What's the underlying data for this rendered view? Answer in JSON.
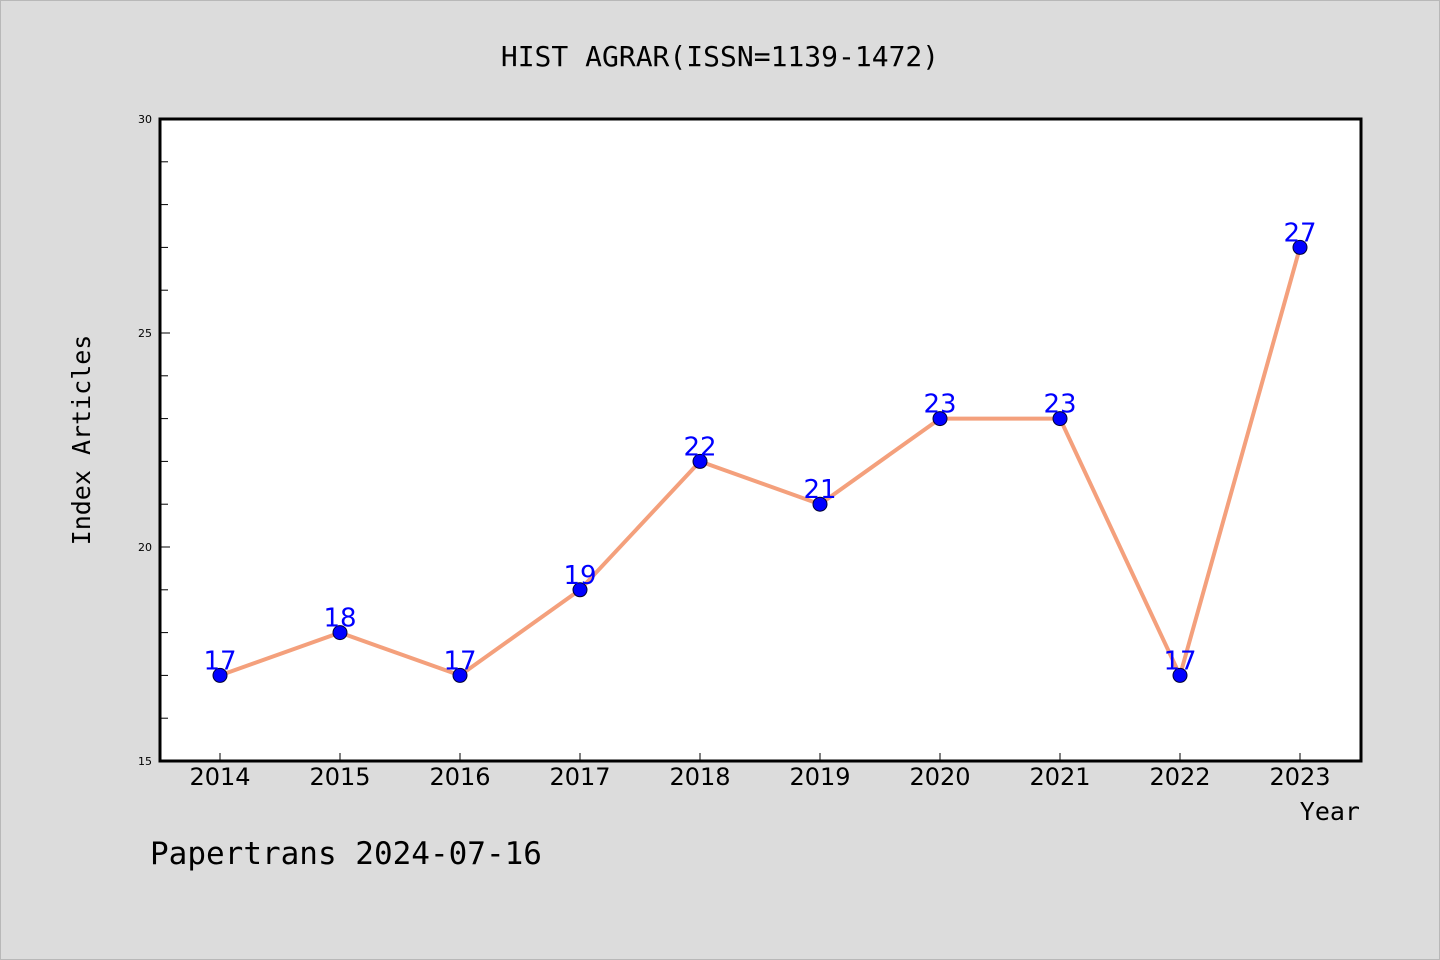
{
  "chart_data": {
    "type": "line",
    "title": "HIST AGRAR(ISSN=1139-1472)",
    "xlabel": "Year",
    "ylabel": "Index Articles",
    "categories": [
      "2014",
      "2015",
      "2016",
      "2017",
      "2018",
      "2019",
      "2020",
      "2021",
      "2022",
      "2023"
    ],
    "series": [
      {
        "values": [
          17,
          18,
          17,
          19,
          22,
          21,
          23,
          23,
          17,
          27
        ]
      }
    ],
    "ylim": [
      15,
      30
    ],
    "y_major_ticks": [
      15,
      20,
      25,
      30
    ],
    "y_minor_step": 1,
    "grid": false,
    "data_labels": true
  },
  "footer": {
    "text": "Papertrans 2024-07-16"
  },
  "colors": {
    "page_background": "#dcdcdc",
    "plot_background": "#ffffff",
    "line": "#f4a07c",
    "marker": "#0000ff",
    "data_label": "#0000ff",
    "axis": "#000000",
    "text": "#000000"
  }
}
